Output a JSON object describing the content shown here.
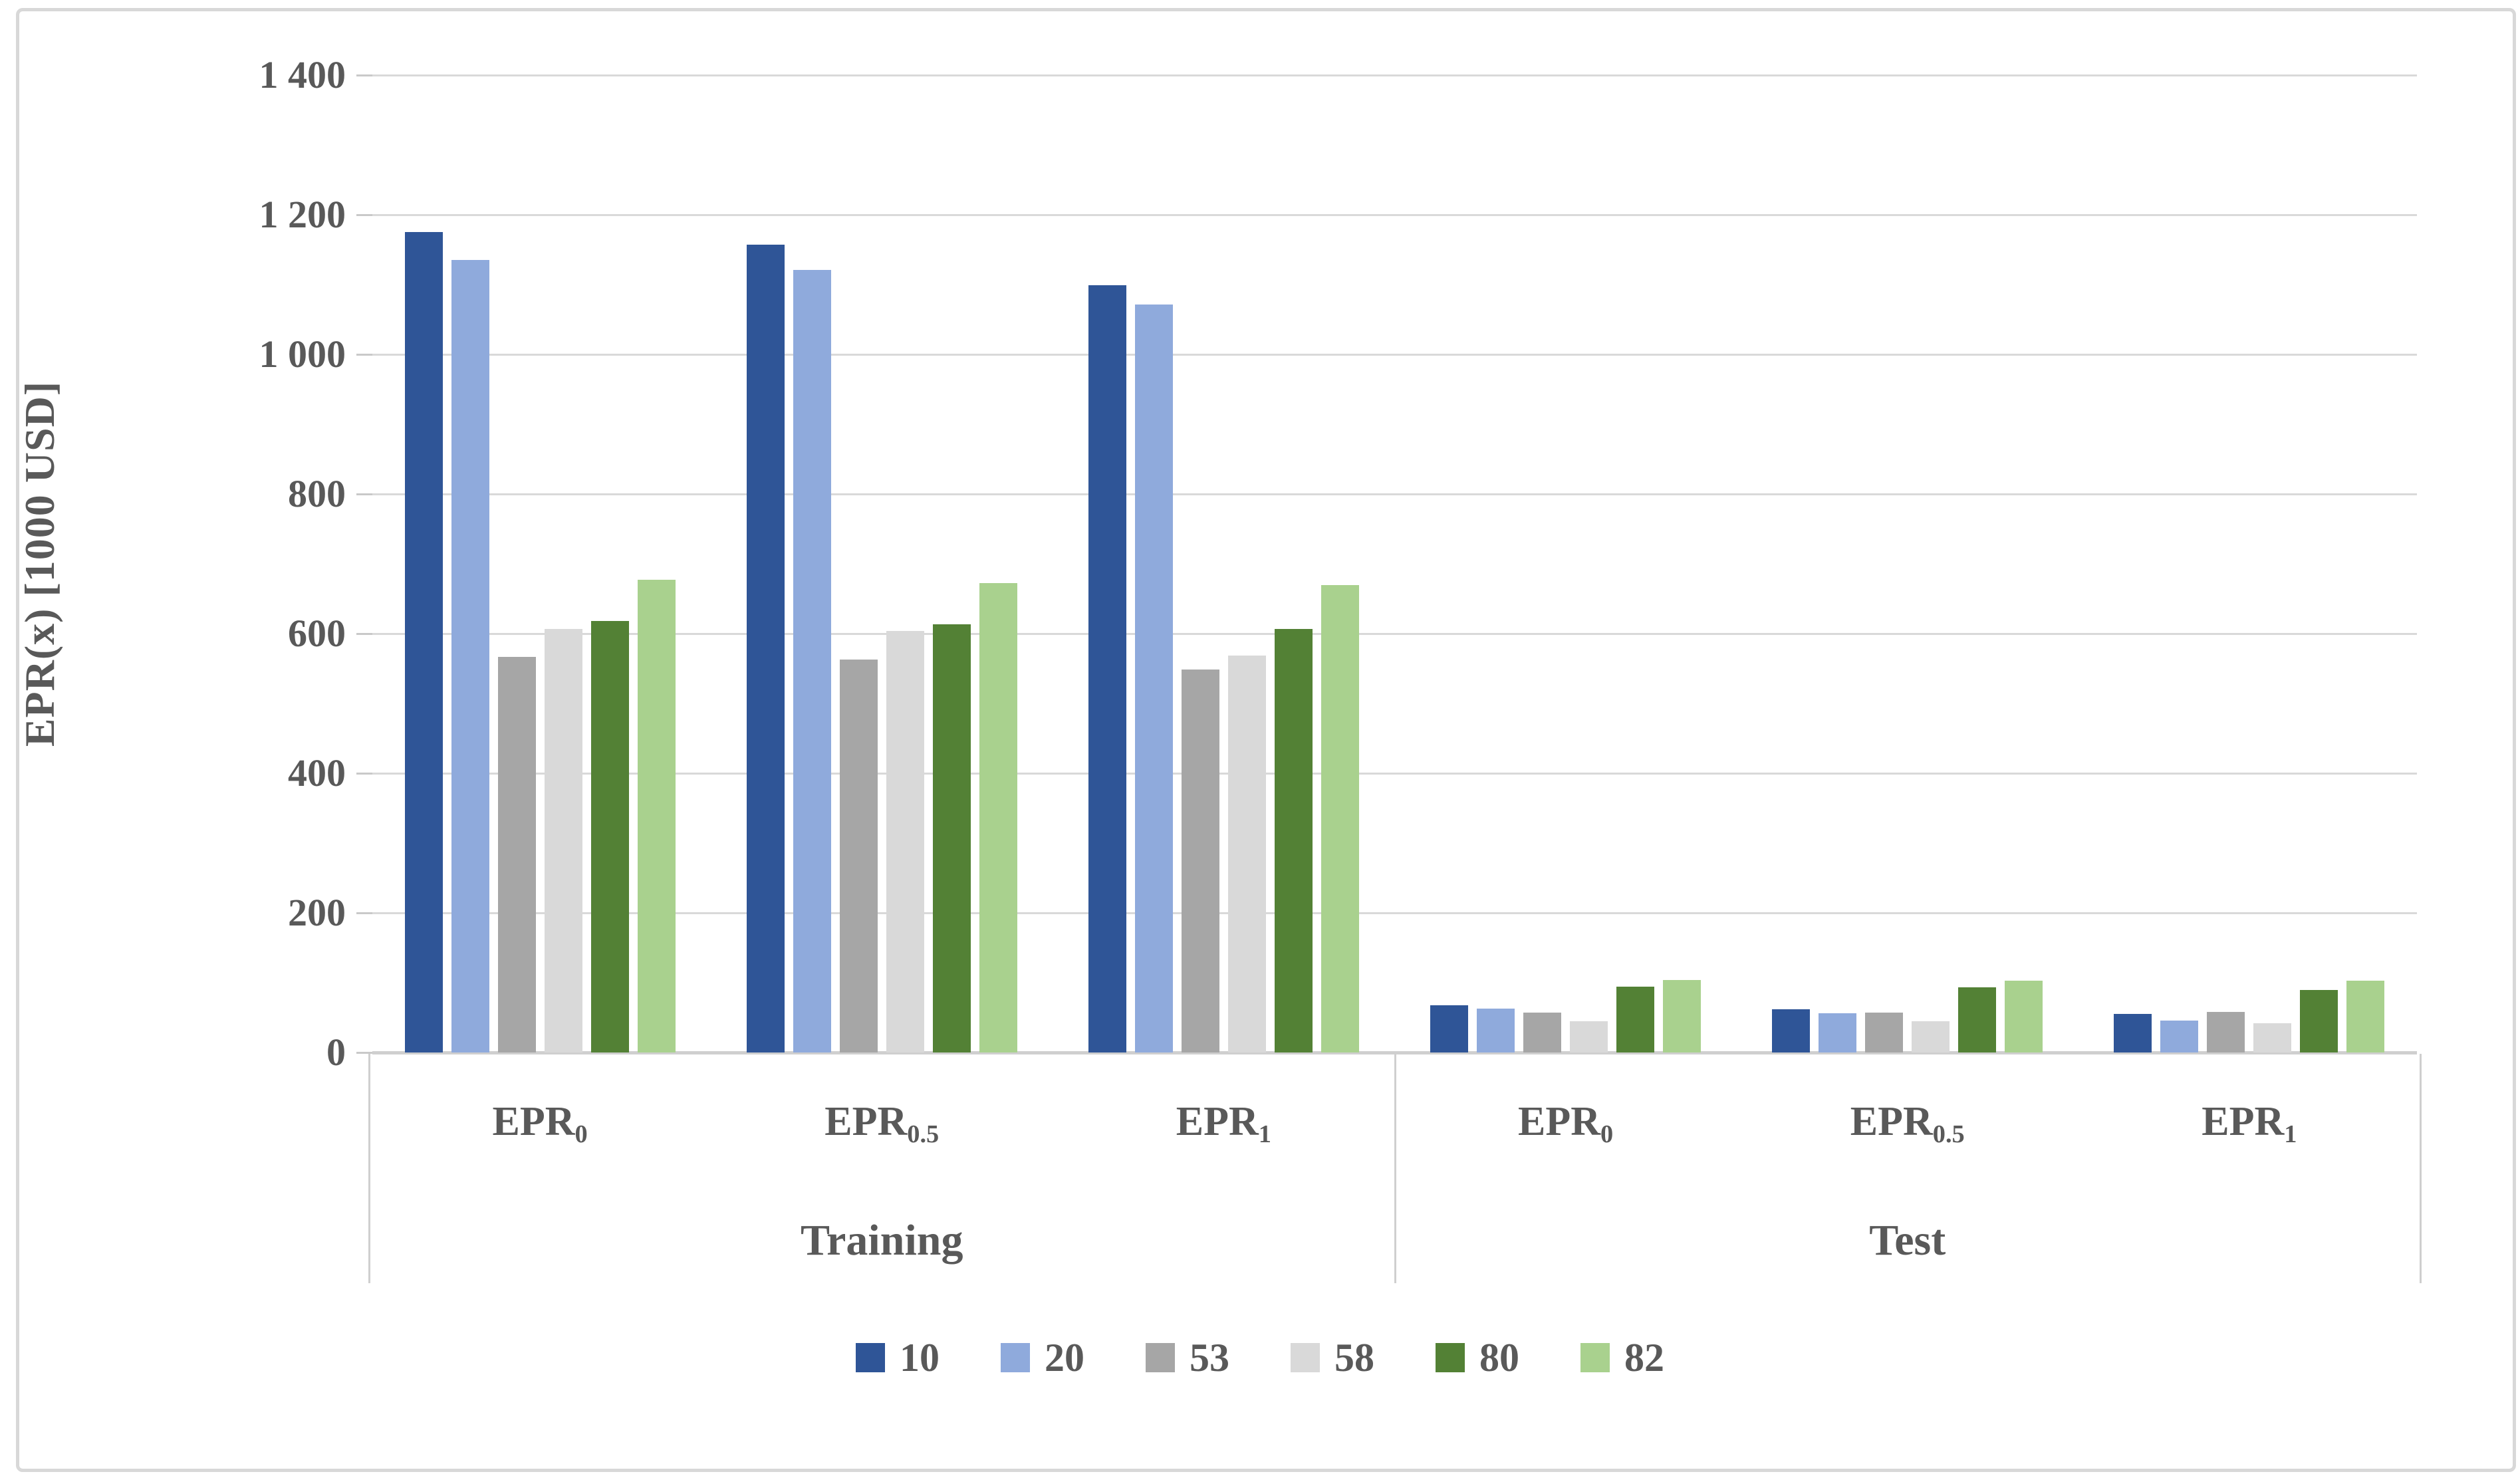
{
  "chart_data": {
    "type": "bar",
    "title": "",
    "ylabel": "EPR(x) [1000 USD]",
    "ylim": [
      0,
      1400
    ],
    "ytick_step": 200,
    "ytick_labels_top_down": [
      "1 400",
      "1 200",
      "1 000",
      "800",
      "600",
      "400",
      "200",
      "0"
    ],
    "grid": true,
    "legend_position": "bottom",
    "series_names": [
      "10",
      "20",
      "53",
      "58",
      "80",
      "82"
    ],
    "series_colors": [
      "#2F5597",
      "#8FAADC",
      "#A6A6A6",
      "#D9D9D9",
      "#538135",
      "#A9D18E"
    ],
    "sections": [
      {
        "label": "Training",
        "groups": [
          {
            "cat_base": "EPR",
            "cat_sub": "0",
            "values": [
              1175,
              1135,
              567,
              607,
              618,
              677
            ]
          },
          {
            "cat_base": "EPR",
            "cat_sub": "0.5",
            "values": [
              1157,
              1121,
              563,
              604,
              613,
              672
            ]
          },
          {
            "cat_base": "EPR",
            "cat_sub": "1",
            "values": [
              1099,
              1071,
              549,
              569,
              607,
              670
            ]
          }
        ]
      },
      {
        "label": "Test",
        "groups": [
          {
            "cat_base": "EPR",
            "cat_sub": "0",
            "values": [
              68,
              63,
              57,
              45,
              94,
              104
            ]
          },
          {
            "cat_base": "EPR",
            "cat_sub": "0.5",
            "values": [
              62,
              56,
              57,
              45,
              93,
              103
            ]
          },
          {
            "cat_base": "EPR",
            "cat_sub": "1",
            "values": [
              55,
              46,
              58,
              42,
              90,
              103
            ]
          }
        ]
      }
    ],
    "colors": {
      "grid": "#D9D9D9",
      "axis": "#CFCFCF",
      "text": "#595959",
      "frame_border": "#D8D8D8"
    }
  }
}
